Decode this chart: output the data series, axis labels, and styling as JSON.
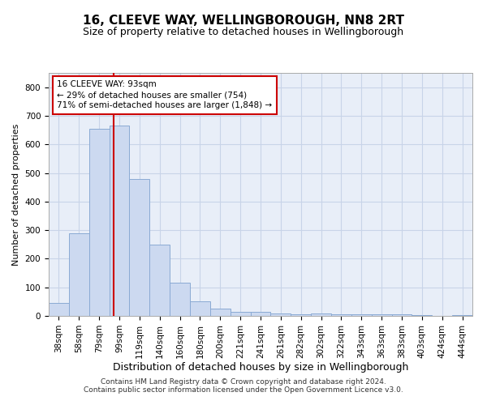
{
  "title1": "16, CLEEVE WAY, WELLINGBOROUGH, NN8 2RT",
  "title2": "Size of property relative to detached houses in Wellingborough",
  "xlabel": "Distribution of detached houses by size in Wellingborough",
  "ylabel": "Number of detached properties",
  "categories": [
    "38sqm",
    "58sqm",
    "79sqm",
    "99sqm",
    "119sqm",
    "140sqm",
    "160sqm",
    "180sqm",
    "200sqm",
    "221sqm",
    "241sqm",
    "261sqm",
    "282sqm",
    "302sqm",
    "322sqm",
    "343sqm",
    "363sqm",
    "383sqm",
    "403sqm",
    "424sqm",
    "444sqm"
  ],
  "values": [
    45,
    290,
    655,
    665,
    480,
    250,
    115,
    50,
    25,
    15,
    15,
    8,
    5,
    8,
    5,
    5,
    5,
    5,
    2,
    0,
    2
  ],
  "bar_color": "#ccd9f0",
  "bar_edge_color": "#8aaad4",
  "vline_color": "#cc0000",
  "vline_x_index": 2.73,
  "annotation_line1": "16 CLEEVE WAY: 93sqm",
  "annotation_line2": "← 29% of detached houses are smaller (754)",
  "annotation_line3": "71% of semi-detached houses are larger (1,848) →",
  "ylim": [
    0,
    850
  ],
  "yticks": [
    0,
    100,
    200,
    300,
    400,
    500,
    600,
    700,
    800
  ],
  "grid_color": "#c8d4e8",
  "bg_color": "#e8eef8",
  "footer1": "Contains HM Land Registry data © Crown copyright and database right 2024.",
  "footer2": "Contains public sector information licensed under the Open Government Licence v3.0.",
  "title1_fontsize": 11,
  "title2_fontsize": 9,
  "xlabel_fontsize": 9,
  "ylabel_fontsize": 8,
  "tick_fontsize": 7.5,
  "footer_fontsize": 6.5
}
